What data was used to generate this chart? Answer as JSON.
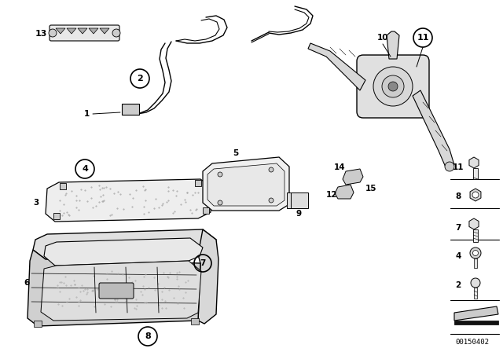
{
  "background_color": "#ffffff",
  "line_color": "#000000",
  "diagram_id": "00150402",
  "fig_width": 6.4,
  "fig_height": 4.48,
  "dpi": 100
}
